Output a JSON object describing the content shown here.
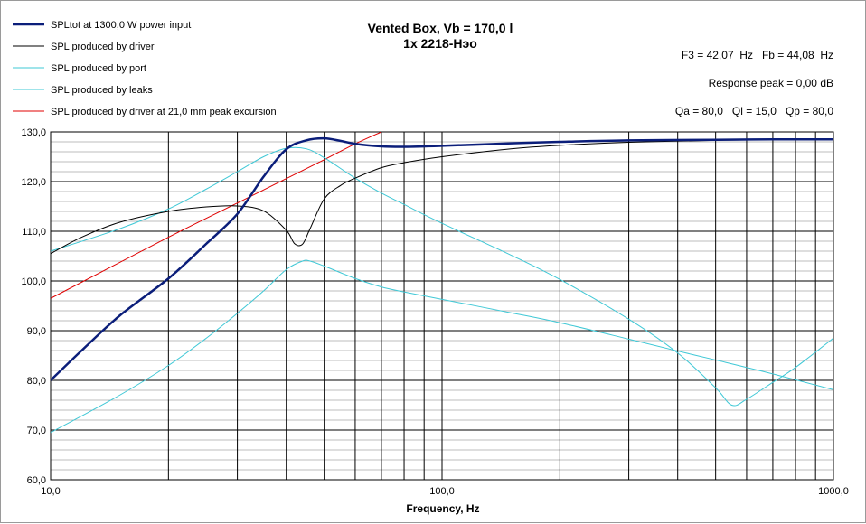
{
  "chart_data": {
    "type": "line",
    "title": "Vented Box, Vb = 170,0 l",
    "subtitle": "1x 2218-Нэо",
    "xlabel": "Frequency, Hz",
    "ylabel": "",
    "xscale": "log",
    "xlim": [
      10,
      1000
    ],
    "ylim": [
      60,
      130
    ],
    "grid": true,
    "legend_position": "top-left",
    "x_tick_labels": [
      {
        "value": 10,
        "label": "10,0"
      },
      {
        "value": 100,
        "label": "100,0"
      },
      {
        "value": 1000,
        "label": "1000,0"
      }
    ],
    "y_tick_labels": [
      {
        "value": 60,
        "label": "60,0"
      },
      {
        "value": 70,
        "label": "70,0"
      },
      {
        "value": 80,
        "label": "80,0"
      },
      {
        "value": 90,
        "label": "90,0"
      },
      {
        "value": 100,
        "label": "100,0"
      },
      {
        "value": 110,
        "label": "110,0"
      },
      {
        "value": 120,
        "label": "120,0"
      },
      {
        "value": 130,
        "label": "130,0"
      }
    ],
    "annotations": [
      "F3 = 42,07  Hz   Fb = 44,08  Hz",
      "Response peak = 0,00 dB",
      "Qa = 80,0   Ql = 15,0   Qp = 80,0"
    ],
    "series": [
      {
        "name": "SPLtot at 1300,0 W power input",
        "color": "#0b1e7a",
        "x": [
          10,
          12,
          15,
          20,
          25,
          30,
          35,
          40,
          45,
          50,
          55,
          60,
          70,
          80,
          100,
          150,
          200,
          300,
          500,
          700,
          1000
        ],
        "y": [
          80,
          86,
          93,
          100.5,
          107.5,
          113.5,
          121,
          126.5,
          128.3,
          128.7,
          128.2,
          127.6,
          127.1,
          127.0,
          127.2,
          127.7,
          128.0,
          128.3,
          128.4,
          128.5,
          128.5
        ]
      },
      {
        "name": "SPL produced by driver",
        "color": "#000000",
        "x": [
          10,
          12,
          15,
          20,
          25,
          30,
          35,
          40,
          42,
          44,
          46,
          50,
          55,
          60,
          70,
          80,
          100,
          150,
          200,
          300,
          500,
          700,
          1000
        ],
        "y": [
          105.5,
          108.8,
          111.8,
          114.0,
          114.9,
          115.1,
          114.1,
          110.2,
          107.5,
          107.4,
          110.5,
          116.5,
          119.2,
          120.7,
          122.8,
          123.8,
          125.0,
          126.6,
          127.3,
          127.9,
          128.3,
          128.4,
          128.5
        ]
      },
      {
        "name": "SPL produced by port",
        "color": "#3fc8d6",
        "x": [
          10,
          15,
          20,
          25,
          30,
          35,
          40,
          45,
          50,
          60,
          70,
          80,
          100,
          150,
          200,
          300,
          400,
          500,
          550,
          600,
          700,
          800,
          1000
        ],
        "y": [
          106,
          110.5,
          114.5,
          118.5,
          122,
          125,
          126.7,
          126.6,
          124.8,
          120.7,
          117.7,
          115.4,
          111.6,
          105.2,
          100.3,
          92.3,
          85.5,
          78.5,
          75.0,
          76.2,
          79.6,
          82.6,
          88.5
        ]
      },
      {
        "name": "SPL produced by leaks",
        "color": "#3fc8d6",
        "x": [
          10,
          15,
          20,
          25,
          30,
          35,
          40,
          44,
          46,
          50,
          60,
          70,
          80,
          100,
          150,
          200,
          300,
          400,
          500,
          700,
          1000
        ],
        "y": [
          69.5,
          77,
          83,
          88.5,
          93.5,
          98,
          102.3,
          104.0,
          104.0,
          103.0,
          100.5,
          98.8,
          97.8,
          96.3,
          93.6,
          91.6,
          88.3,
          85.9,
          84.1,
          81.3,
          78.1
        ]
      },
      {
        "name": "SPL produced by driver at 21,0 mm peak excursion",
        "color": "#e00000",
        "x": [
          10,
          20,
          30,
          40,
          50,
          60,
          70
        ],
        "y": [
          96.5,
          108.8,
          115.7,
          120.6,
          124.4,
          127.6,
          130.0
        ]
      }
    ]
  }
}
